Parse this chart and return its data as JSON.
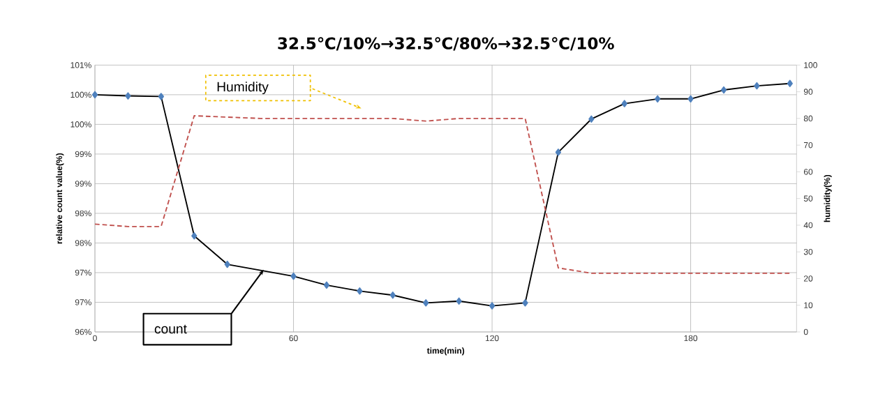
{
  "chart_data": {
    "type": "line",
    "title": "32.5℃/10%→32.5℃/80%→32.5℃/10%",
    "xlabel": "time(min)",
    "ylabel": "relative count value(%)",
    "y2label": "humidity(%)",
    "xlim": [
      0,
      212
    ],
    "xticks": [
      0,
      60,
      120,
      180
    ],
    "ylim": [
      96,
      100.5
    ],
    "yticks": [
      {
        "value": 96,
        "label": "96%"
      },
      {
        "value": 96.5,
        "label": "97%"
      },
      {
        "value": 97,
        "label": "97%"
      },
      {
        "value": 97.5,
        "label": "98%"
      },
      {
        "value": 98,
        "label": "98%"
      },
      {
        "value": 98.5,
        "label": "99%"
      },
      {
        "value": 99,
        "label": "99%"
      },
      {
        "value": 99.5,
        "label": "100%"
      },
      {
        "value": 100,
        "label": "100%"
      },
      {
        "value": 100.5,
        "label": "101%"
      }
    ],
    "y2lim": [
      0,
      100
    ],
    "y2ticks": [
      0,
      10,
      20,
      30,
      40,
      50,
      60,
      70,
      80,
      90,
      100
    ],
    "grid": true,
    "legend": false,
    "series": [
      {
        "color": "#4f81bd",
        "marker": "diamond",
        "line_style": "solid",
        "x": [
          0,
          10,
          20,
          30,
          40,
          60,
          70,
          80,
          90,
          100,
          110,
          120,
          130,
          140,
          150,
          160,
          170,
          180,
          190,
          200,
          210
        ],
        "values": [
          100.0,
          99.98,
          99.97,
          97.62,
          97.14,
          96.94,
          96.79,
          96.69,
          96.62,
          96.49,
          96.52,
          96.44,
          96.49,
          99.03,
          99.59,
          99.85,
          99.93,
          99.93,
          100.08,
          100.15,
          100.19
        ]
      },
      {
        "color": "#c0504d",
        "marker": "none",
        "line_style": "dashed",
        "axis": "y2",
        "x": [
          0,
          10,
          20,
          30,
          40,
          50,
          60,
          70,
          80,
          90,
          100,
          110,
          120,
          130,
          140,
          150,
          160,
          170,
          180,
          190,
          200,
          210
        ],
        "values": [
          40.4,
          39.5,
          39.5,
          81,
          80.5,
          80,
          80,
          80,
          80,
          80,
          79,
          80,
          80,
          80,
          24,
          22,
          22,
          22,
          22,
          22,
          22,
          22
        ]
      }
    ],
    "annotations": [
      "count",
      "Humidity"
    ]
  }
}
